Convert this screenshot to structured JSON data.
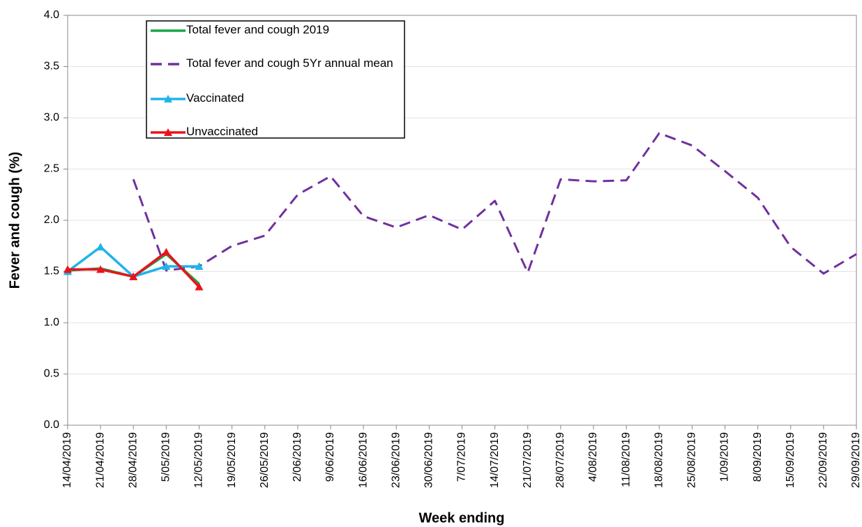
{
  "chart_data": {
    "type": "line",
    "x_label": "Week ending",
    "y_label": "Fever and cough (%)",
    "categories": [
      "14/04/2019",
      "21/04/2019",
      "28/04/2019",
      "5/05/2019",
      "12/05/2019",
      "19/05/2019",
      "26/05/2019",
      "2/06/2019",
      "9/06/2019",
      "16/06/2019",
      "23/06/2019",
      "30/06/2019",
      "7/07/2019",
      "14/07/2019",
      "21/07/2019",
      "28/07/2019",
      "4/08/2019",
      "11/08/2019",
      "18/08/2019",
      "25/08/2019",
      "1/09/2019",
      "8/09/2019",
      "15/09/2019",
      "22/09/2019",
      "29/09/2019"
    ],
    "series": [
      {
        "name": "Total fever and cough 2019",
        "color": "#1aa64a",
        "dashed": false,
        "marker": false,
        "values": [
          1.51,
          1.53,
          1.45,
          1.67,
          1.38,
          null,
          null,
          null,
          null,
          null,
          null,
          null,
          null,
          null,
          null,
          null,
          null,
          null,
          null,
          null,
          null,
          null,
          null,
          null,
          null
        ]
      },
      {
        "name": "Total fever and cough 5Yr annual mean",
        "color": "#7030a0",
        "dashed": true,
        "marker": false,
        "values": [
          null,
          null,
          2.4,
          1.51,
          1.55,
          1.75,
          1.85,
          2.25,
          2.43,
          2.04,
          1.93,
          2.05,
          1.91,
          2.19,
          1.49,
          2.4,
          2.38,
          2.39,
          2.85,
          2.73,
          2.48,
          2.22,
          1.74,
          1.48,
          1.67
        ]
      },
      {
        "name": "Vaccinated",
        "color": "#1fb4ea",
        "dashed": false,
        "marker": true,
        "values": [
          1.5,
          1.74,
          1.45,
          1.55,
          1.55,
          null,
          null,
          null,
          null,
          null,
          null,
          null,
          null,
          null,
          null,
          null,
          null,
          null,
          null,
          null,
          null,
          null,
          null,
          null,
          null
        ]
      },
      {
        "name": "Unvaccinated",
        "color": "#e8141c",
        "dashed": false,
        "marker": true,
        "values": [
          1.52,
          1.52,
          1.45,
          1.69,
          1.35,
          null,
          null,
          null,
          null,
          null,
          null,
          null,
          null,
          null,
          null,
          null,
          null,
          null,
          null,
          null,
          null,
          null,
          null,
          null,
          null
        ]
      }
    ],
    "ylim": [
      0,
      4
    ],
    "yticks": [
      {
        "value": 0,
        "label": "0.0"
      },
      {
        "value": 0.5,
        "label": "0.5"
      },
      {
        "value": 1,
        "label": "1.0"
      },
      {
        "value": 1.5,
        "label": "1.5"
      },
      {
        "value": 2,
        "label": "2.0"
      },
      {
        "value": 2.5,
        "label": "2.5"
      },
      {
        "value": 3,
        "label": "3.0"
      },
      {
        "value": 3.5,
        "label": "3.5"
      },
      {
        "value": 4,
        "label": "4.0"
      }
    ],
    "grid": true,
    "legend": "top-left"
  }
}
